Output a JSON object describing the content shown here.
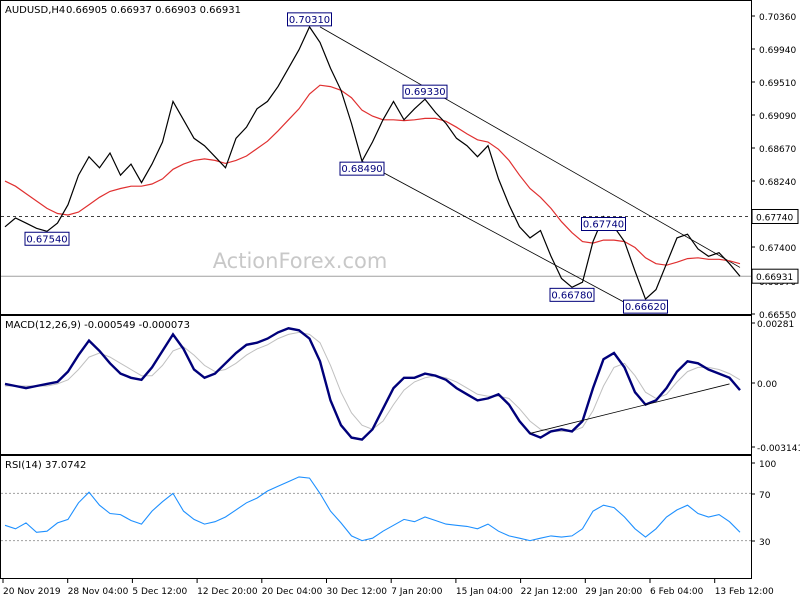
{
  "header": {
    "symbol": "AUDUSD,H4",
    "ohlc": "0.66905 0.66937 0.66903 0.66931",
    "macd_label": "MACD(12,26,9) -0.000549 -0.000073",
    "rsi_label": "RSI(14) 37.0742"
  },
  "watermark": "ActionForex.com",
  "colors": {
    "price": "#000000",
    "ma": "#e03030",
    "macd": "#00007a",
    "signal": "#c0c0c0",
    "rsi": "#1e90ff",
    "trendline": "#000000",
    "frame": "#000000",
    "level_dotted": "#404040",
    "last_price_bg": "#ffffff"
  },
  "chart_data": [
    {
      "type": "line",
      "title": "AUDUSD,H4",
      "y_ticks": [
        "0.70360",
        "0.69940",
        "0.69510",
        "0.69090",
        "0.68670",
        "0.68240",
        "0.67820",
        "0.67400",
        "0.66970",
        "0.66550"
      ],
      "x_ticks": [
        "20 Nov 2019",
        "28 Nov 04:00",
        "5 Dec 12:00",
        "12 Dec 20:00",
        "20 Dec 04:00",
        "30 Dec 12:00",
        "7 Jan 20:00",
        "15 Jan 04:00",
        "22 Jan 12:00",
        "29 Jan 20:00",
        "6 Feb 04:00",
        "13 Feb 12:00"
      ],
      "ylim": [
        0.665,
        0.7043
      ],
      "series": [
        {
          "values": [
            0.676,
            0.6772,
            0.6765,
            0.6758,
            0.6754,
            0.6765,
            0.679,
            0.683,
            0.6855,
            0.684,
            0.686,
            0.683,
            0.6845,
            0.682,
            0.6845,
            0.6875,
            0.693,
            0.6905,
            0.688,
            0.687,
            0.6855,
            0.684,
            0.688,
            0.6895,
            0.692,
            0.693,
            0.695,
            0.6975,
            0.7,
            0.7031,
            0.701,
            0.6975,
            0.6945,
            0.69,
            0.6849,
            0.6875,
            0.6905,
            0.693,
            0.6905,
            0.692,
            0.6933,
            0.6915,
            0.69,
            0.688,
            0.687,
            0.6855,
            0.687,
            0.6825,
            0.679,
            0.676,
            0.6745,
            0.6755,
            0.672,
            0.669,
            0.6678,
            0.6685,
            0.674,
            0.6774,
            0.676,
            0.674,
            0.67,
            0.6662,
            0.6675,
            0.671,
            0.6745,
            0.675,
            0.673,
            0.672,
            0.6725,
            0.671,
            0.6693
          ]
        },
        {
          "values": [
            0.6822,
            0.6815,
            0.6805,
            0.6795,
            0.6785,
            0.6778,
            0.6776,
            0.678,
            0.679,
            0.68,
            0.6808,
            0.6812,
            0.6815,
            0.6815,
            0.6818,
            0.6825,
            0.6838,
            0.6845,
            0.685,
            0.6852,
            0.685,
            0.6846,
            0.685,
            0.6856,
            0.6866,
            0.6876,
            0.689,
            0.6905,
            0.692,
            0.694,
            0.6952,
            0.695,
            0.6945,
            0.6935,
            0.6918,
            0.691,
            0.6905,
            0.6905,
            0.6904,
            0.6905,
            0.6907,
            0.6907,
            0.6903,
            0.6895,
            0.6886,
            0.6878,
            0.6875,
            0.6865,
            0.685,
            0.683,
            0.6812,
            0.68,
            0.6785,
            0.6767,
            0.6752,
            0.674,
            0.6738,
            0.6742,
            0.6742,
            0.674,
            0.6732,
            0.6718,
            0.671,
            0.6708,
            0.6712,
            0.6717,
            0.6718,
            0.6716,
            0.6716,
            0.6714,
            0.671
          ]
        }
      ],
      "levels": [
        {
          "value": 0.6774,
          "label": "0.67740",
          "style": "dotted"
        },
        {
          "value": 0.66931,
          "label": "0.66931",
          "style": "solid-gray"
        }
      ],
      "trendlines": [
        {
          "x": [
            30,
            70
          ],
          "y": [
            0.7031,
            0.6705
          ]
        },
        {
          "x": [
            34,
            60
          ],
          "y": [
            0.6849,
            0.665
          ]
        }
      ],
      "annotations": [
        {
          "label": "0.70310",
          "x": 29,
          "y": 0.7031
        },
        {
          "label": "0.69330",
          "x": 40,
          "y": 0.6933
        },
        {
          "label": "0.68490",
          "x": 34,
          "y": 0.6849
        },
        {
          "label": "0.67540",
          "x": 4,
          "y": 0.6754
        },
        {
          "label": "0.67740",
          "x": 57,
          "y": 0.6774
        },
        {
          "label": "0.66780",
          "x": 54,
          "y": 0.6678
        },
        {
          "label": "0.66620",
          "x": 61,
          "y": 0.6662
        }
      ]
    },
    {
      "type": "line",
      "title": "MACD(12,26,9)",
      "y_ticks": [
        "0.00281",
        "0.00",
        "-0.003141"
      ],
      "ylim": [
        -0.0035,
        0.0029
      ],
      "series": [
        {
          "values": [
            -0.0002,
            -0.0003,
            -0.0004,
            -0.0003,
            -0.0002,
            -0.0001,
            0.0004,
            0.0012,
            0.0019,
            0.0014,
            0.0008,
            0.0003,
            0.0001,
            0.0,
            0.0006,
            0.0014,
            0.0022,
            0.0015,
            0.0005,
            0.0001,
            0.0003,
            0.0008,
            0.0013,
            0.0017,
            0.0018,
            0.002,
            0.0023,
            0.0025,
            0.0024,
            0.002,
            0.0009,
            -0.001,
            -0.0022,
            -0.0028,
            -0.0029,
            -0.0024,
            -0.0014,
            -0.0004,
            0.0001,
            0.0001,
            0.0003,
            0.0002,
            0.0,
            -0.0004,
            -0.0007,
            -0.001,
            -0.0009,
            -0.0007,
            -0.0012,
            -0.002,
            -0.0026,
            -0.0028,
            -0.0025,
            -0.0024,
            -0.0025,
            -0.002,
            -0.0004,
            0.001,
            0.0013,
            0.0006,
            -0.0006,
            -0.0012,
            -0.001,
            -0.0004,
            0.0004,
            0.0009,
            0.0008,
            0.0005,
            0.0003,
            0.0001,
            -0.0005
          ]
        },
        {
          "values": [
            -0.0003,
            -0.0003,
            -0.0003,
            -0.0003,
            -0.0003,
            -0.0002,
            0.0,
            0.0005,
            0.0011,
            0.0013,
            0.0011,
            0.0008,
            0.0005,
            0.0002,
            0.0002,
            0.0007,
            0.0014,
            0.0016,
            0.0012,
            0.0007,
            0.0004,
            0.0005,
            0.0008,
            0.0012,
            0.0015,
            0.0017,
            0.002,
            0.0022,
            0.0023,
            0.0022,
            0.0018,
            0.0007,
            -0.0006,
            -0.0016,
            -0.0022,
            -0.0024,
            -0.002,
            -0.0012,
            -0.0005,
            -0.0001,
            0.0001,
            0.0002,
            0.0001,
            -0.0001,
            -0.0004,
            -0.0007,
            -0.0008,
            -0.0008,
            -0.0009,
            -0.0014,
            -0.002,
            -0.0024,
            -0.0025,
            -0.0025,
            -0.0025,
            -0.0023,
            -0.0015,
            -0.0003,
            0.0006,
            0.0008,
            0.0002,
            -0.0006,
            -0.0009,
            -0.0007,
            -0.0001,
            0.0004,
            0.0006,
            0.0006,
            0.0005,
            0.0003,
            0.0
          ]
        }
      ],
      "trendlines": [
        {
          "x": [
            50,
            69
          ],
          "y": [
            -0.0026,
            -0.0002
          ]
        }
      ]
    },
    {
      "type": "line",
      "title": "RSI(14)",
      "y_ticks": [
        "100",
        "70",
        "30"
      ],
      "ylim": [
        0,
        100
      ],
      "levels": [
        70,
        30
      ],
      "series": [
        {
          "values": [
            43,
            40,
            45,
            37,
            38,
            45,
            48,
            62,
            71,
            60,
            53,
            52,
            47,
            44,
            55,
            63,
            70,
            55,
            48,
            44,
            46,
            50,
            56,
            62,
            66,
            72,
            76,
            80,
            84,
            83,
            70,
            55,
            45,
            34,
            30,
            32,
            38,
            43,
            48,
            46,
            50,
            47,
            44,
            43,
            42,
            40,
            44,
            38,
            34,
            32,
            30,
            32,
            34,
            33,
            34,
            40,
            55,
            60,
            58,
            50,
            40,
            33,
            40,
            50,
            56,
            60,
            53,
            50,
            52,
            46,
            37
          ]
        }
      ]
    }
  ]
}
